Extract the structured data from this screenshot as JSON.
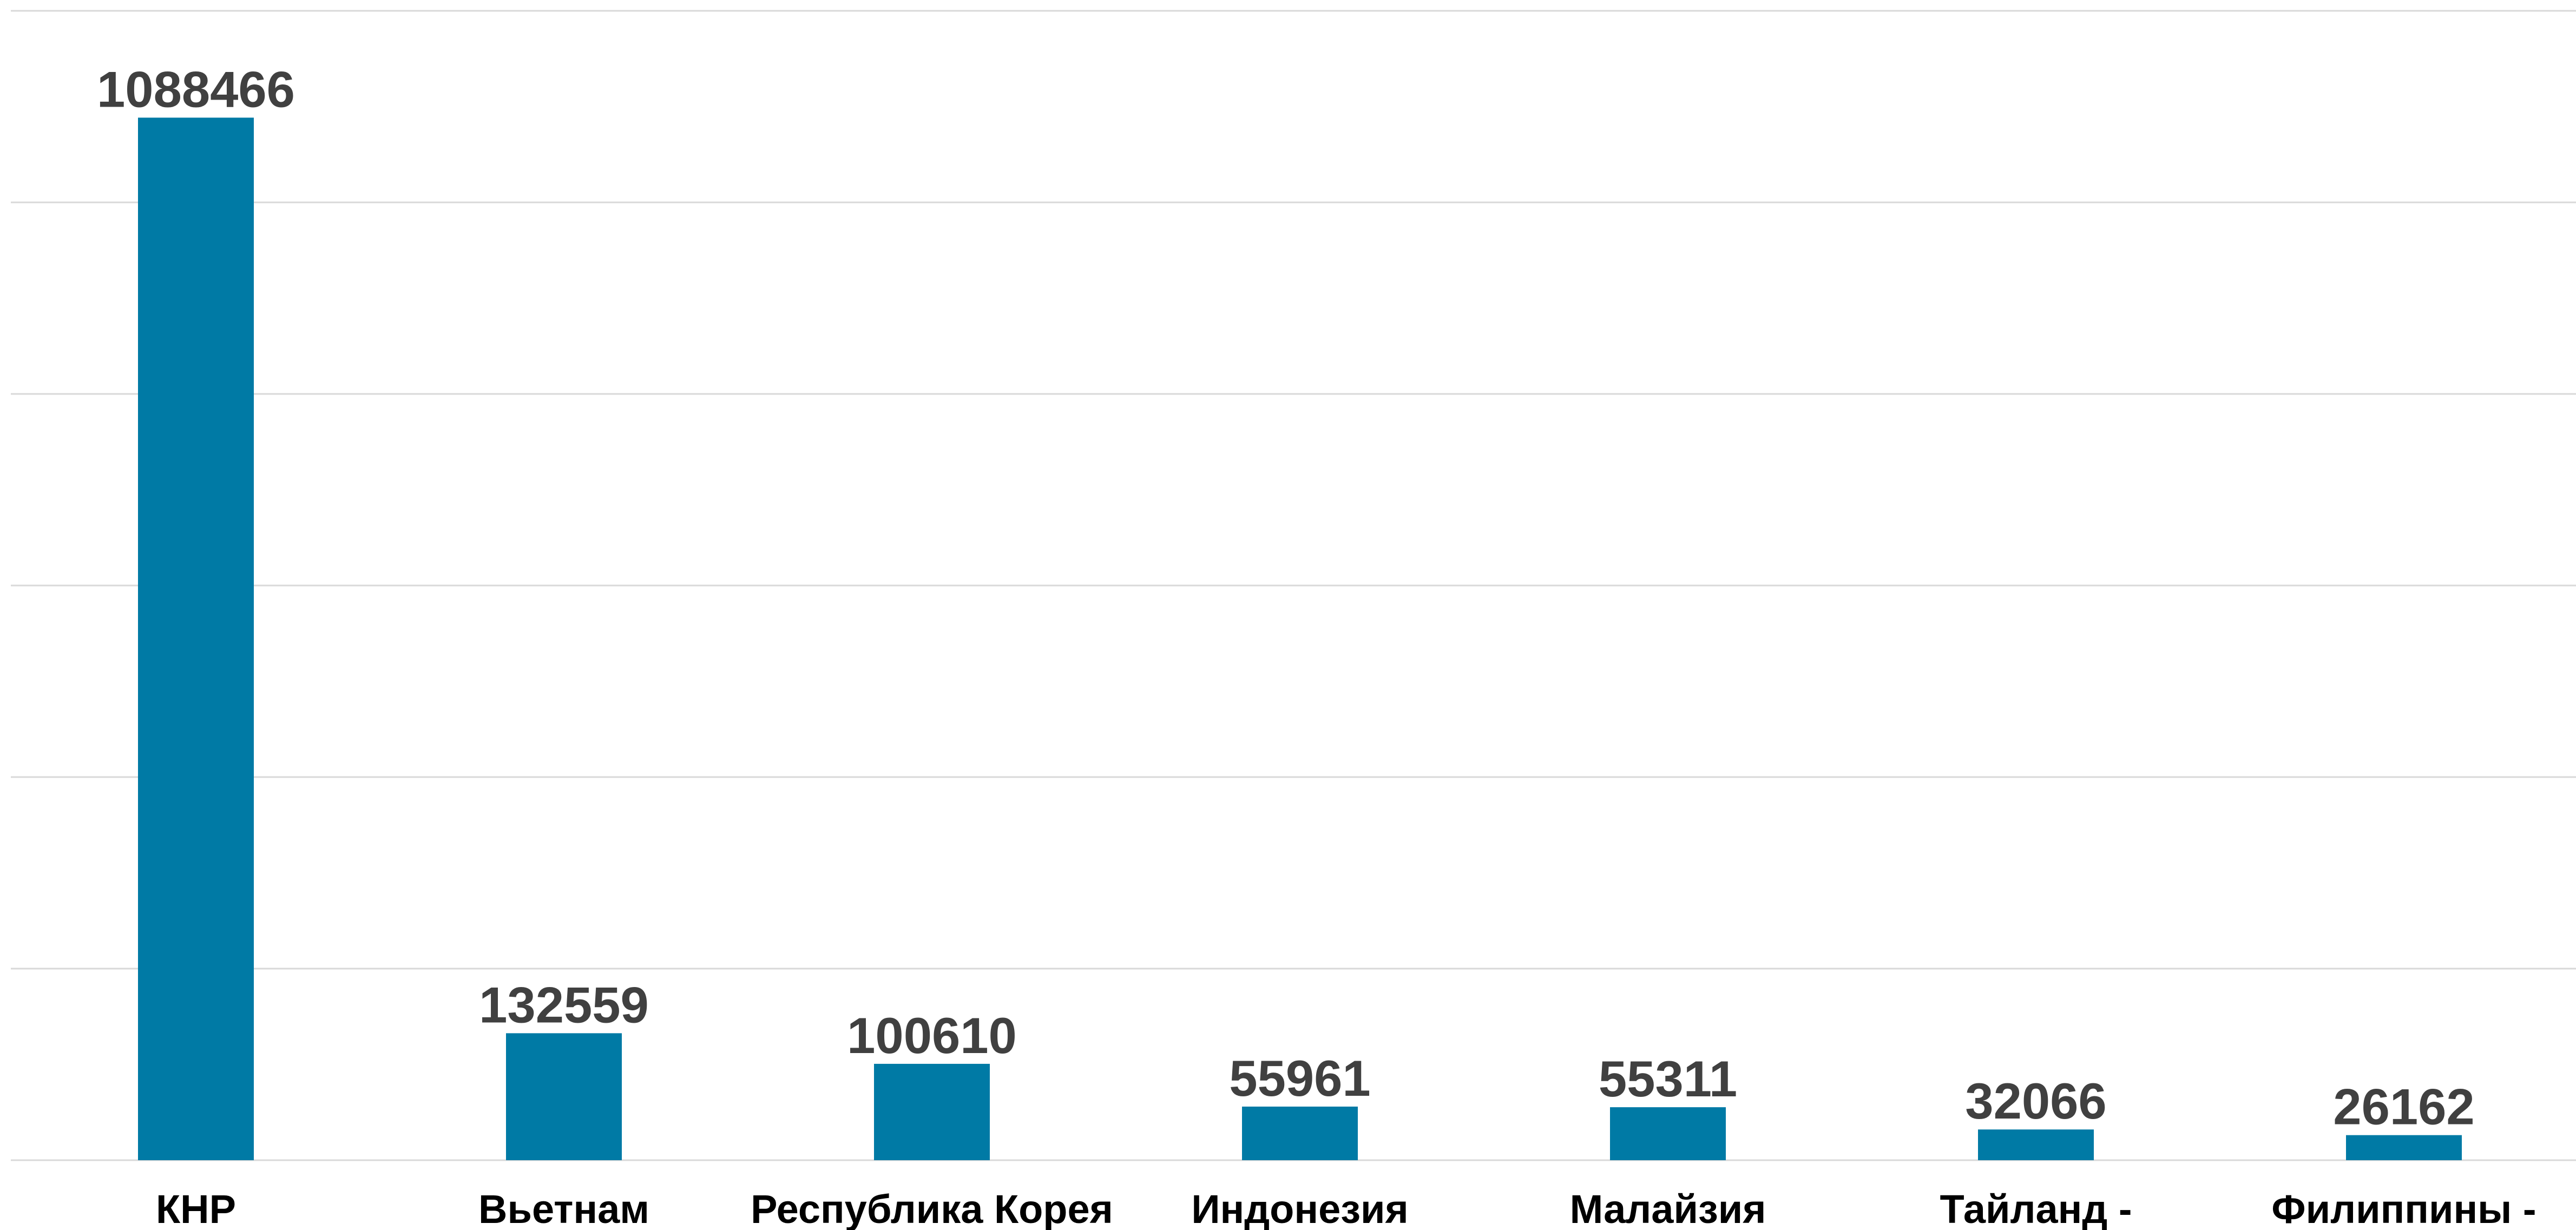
{
  "chart_data": {
    "type": "bar",
    "title": "",
    "xlabel": "",
    "ylabel": "",
    "categories": [
      "КНР",
      "Вьетнам",
      "Республика Корея",
      "Индонезия",
      "Малайзия",
      "Тайланд -",
      "Филиппины -"
    ],
    "values": [
      1088466,
      132559,
      100610,
      55961,
      55311,
      32066,
      26162
    ],
    "value_labels": [
      "1088466",
      "132559",
      "100610",
      "55961",
      "55311",
      "32066",
      "26162"
    ],
    "ylim": [
      0,
      1200000
    ],
    "gridlines": [
      0,
      200000,
      400000,
      600000,
      800000,
      1000000,
      1200000
    ],
    "grid": true,
    "y_tick_labels_visible": false,
    "legend": "none",
    "bar_color": "#007AA5"
  }
}
